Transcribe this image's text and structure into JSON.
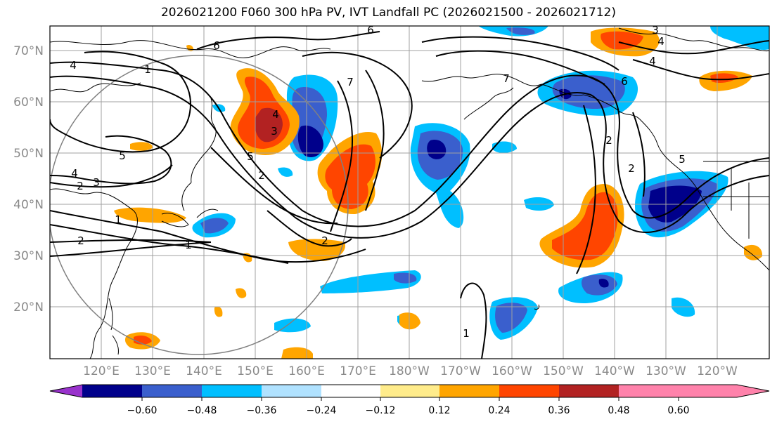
{
  "title": "2026021200 F060 300 hPa PV, IVT Landfall PC (2026021500 - 2026021712)",
  "lat_labels": [
    "70°N",
    "60°N",
    "50°N",
    "40°N",
    "30°N",
    "20°N"
  ],
  "lon_labels": [
    "120°E",
    "130°E",
    "140°E",
    "150°E",
    "160°E",
    "170°E",
    "180°W",
    "170°W",
    "160°W",
    "150°W",
    "140°W",
    "130°W",
    "120°W"
  ],
  "colorbar": {
    "colors": [
      "#9932cc",
      "#00008b",
      "#3a5fcd",
      "#00bfff",
      "#b0e2ff",
      "#ffffff",
      "#ffec8b",
      "#ffa500",
      "#ff4500",
      "#b22222",
      "#ff82ab"
    ],
    "tick_labels": [
      "−0.60",
      "−0.48",
      "−0.36",
      "−0.24",
      "−0.12",
      "0.12",
      "0.24",
      "0.36",
      "0.48",
      "0.60"
    ]
  },
  "contour_labels": [
    "6",
    "3",
    "4",
    "4",
    "1",
    "6",
    "5",
    "4",
    "2",
    "3",
    "1",
    "2",
    "1",
    "4",
    "5",
    "3",
    "2",
    "2",
    "7",
    "7",
    "6",
    "2",
    "2",
    "5",
    "1",
    "4"
  ],
  "palette": {
    "neg_strong": "#00008b",
    "neg_mid": "#3a5fcd",
    "neg_weak": "#00bfff",
    "pos_weak": "#ffa500",
    "pos_mid": "#ff4500",
    "pos_strong": "#b22222",
    "pos_faint": "#ffec8b"
  }
}
